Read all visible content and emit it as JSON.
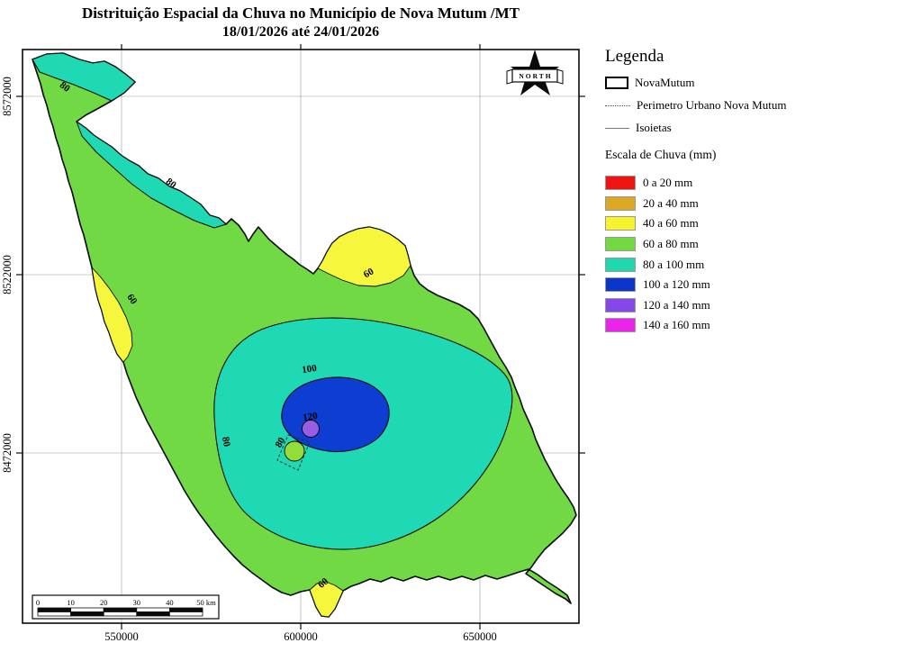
{
  "title": {
    "line1": "Distrituição Espacial da Chuva no Município de Nova Mutum /MT",
    "line2": "18/01/2026 até 24/01/2026"
  },
  "north": {
    "label": "NORTH"
  },
  "axes": {
    "y_ticks": [
      "8572000",
      "8522000",
      "8472000"
    ],
    "x_ticks": [
      "550000",
      "600000",
      "650000"
    ]
  },
  "scalebar": {
    "ticks": [
      "0",
      "10",
      "20",
      "30",
      "40"
    ],
    "end_label": "50 km"
  },
  "legend": {
    "heading": "Legenda",
    "items": [
      {
        "icon": "municipality-outline",
        "label": "NovaMutum"
      },
      {
        "icon": "dotted-line",
        "label": "Perimetro Urbano Nova Mutum"
      },
      {
        "icon": "thin-line",
        "label": "Isoietas"
      }
    ],
    "scale_heading": "Escala de Chuva (mm)",
    "classes": [
      {
        "label": "0 a 20 mm",
        "color": "#ee1411"
      },
      {
        "label": "20 a 40 mm",
        "color": "#dda823"
      },
      {
        "label": "40 a 60 mm",
        "color": "#f4f32e"
      },
      {
        "label": "60 a 80 mm",
        "color": "#72da40"
      },
      {
        "label": "80 a 100 mm",
        "color": "#21d8ae"
      },
      {
        "label": "100 a 120 mm",
        "color": "#0a36cc"
      },
      {
        "label": "120 a 140 mm",
        "color": "#8547e8"
      },
      {
        "label": "140 a 160 mm",
        "color": "#ea24ea"
      }
    ]
  },
  "map_colors": {
    "municipality_green": "#70d944",
    "isohyet_teal": "#1fd8b4",
    "isohyet_blue": "#0d3ed1",
    "isohyet_purple": "#9a5ce0",
    "isohyet_yellow": "#f6f63c",
    "outline": "#0a0a0a",
    "grid": "#9a9a9a"
  },
  "contours": [
    {
      "text": "80"
    },
    {
      "text": "80"
    },
    {
      "text": "60"
    },
    {
      "text": "60"
    },
    {
      "text": "80"
    },
    {
      "text": "100"
    },
    {
      "text": "120"
    },
    {
      "text": "80"
    },
    {
      "text": "60"
    }
  ]
}
